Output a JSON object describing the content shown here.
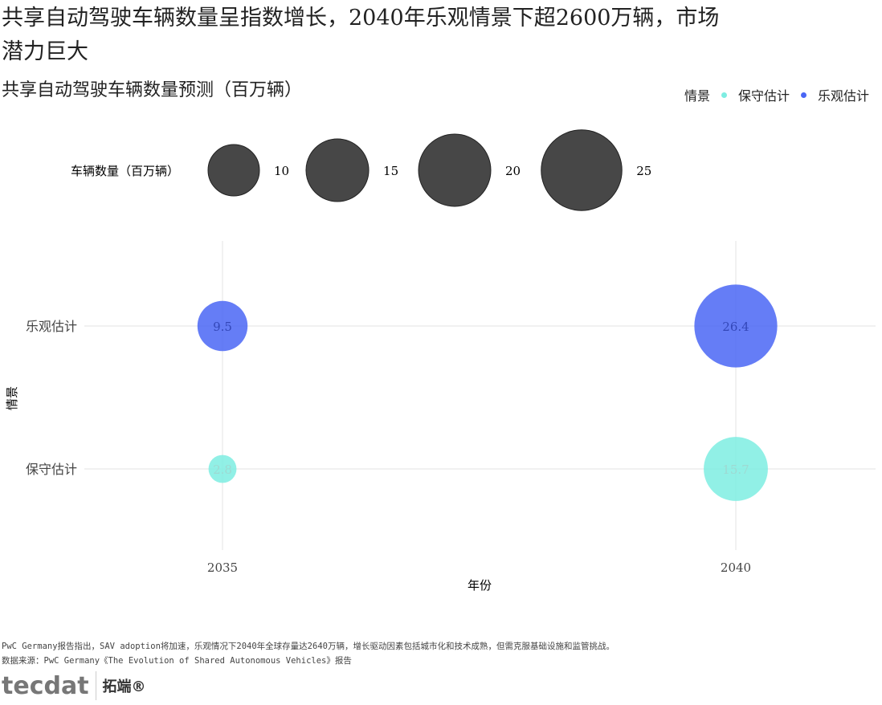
{
  "title": "共享自动驾驶车辆数量呈指数增长，2040年乐观情景下超2600万辆，市场潜力巨大",
  "subtitle": "共享自动驾驶车辆数量预测（百万辆）",
  "legend": {
    "scenario_title": "情景",
    "size_title": "车辆数量（百万辆）",
    "size_breaks": [
      10,
      15,
      20,
      25
    ]
  },
  "colors": {
    "保守估计": "#7EEDE2",
    "乐观估计": "#4A66F5",
    "size_legend": "#333333"
  },
  "chart_data": {
    "type": "scatter",
    "xlabel": "年份",
    "ylabel": "情景",
    "x_ticks": [
      "2035",
      "2040"
    ],
    "y_categories": [
      "保守估计",
      "乐观估计"
    ],
    "series": [
      {
        "name": "保守估计",
        "points": [
          {
            "x": "2035",
            "value": 2.8
          },
          {
            "x": "2040",
            "value": 15.7
          }
        ]
      },
      {
        "name": "乐观估计",
        "points": [
          {
            "x": "2035",
            "value": 9.5
          },
          {
            "x": "2040",
            "value": 26.4
          }
        ]
      }
    ],
    "grid": true,
    "legend_placement": "top"
  },
  "caption": [
    "PwC Germany报告指出，SAV adoption将加速，乐观情况下2040年全球存量达2640万辆，增长驱动因素包括城市化和技术成熟，但需克服基础设施和监管挑战。",
    "数据来源：PwC Germany《The Evolution of Shared Autonomous Vehicles》报告"
  ],
  "logo": {
    "text": "tecdat",
    "cn": "拓端®"
  }
}
